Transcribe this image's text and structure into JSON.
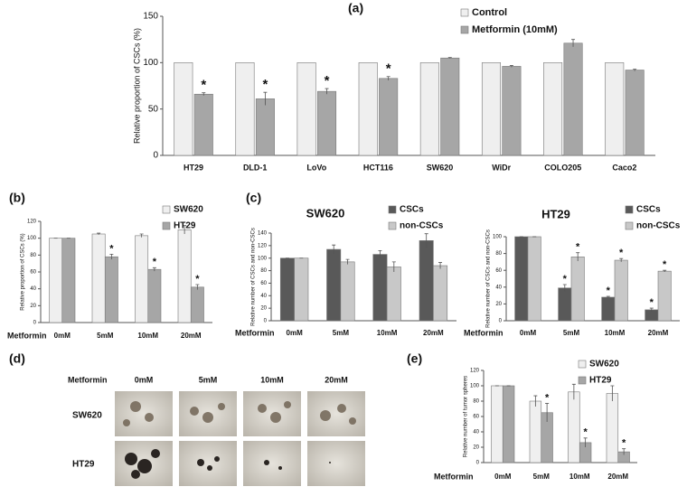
{
  "chart_data": [
    {
      "type": "bar",
      "panel_label": "(a)",
      "ylabel": "Relative proportion of CSCs (%)",
      "categories": [
        "HT29",
        "DLD-1",
        "LoVo",
        "HCT116",
        "SW620",
        "WiDr",
        "COLO205",
        "Caco2"
      ],
      "series": [
        {
          "name": "Control",
          "color": "#efefef",
          "values": [
            100,
            100,
            100,
            100,
            100,
            100,
            100,
            100
          ]
        },
        {
          "name": "Metformin (10mM)",
          "color": "#a6a6a6",
          "values": [
            66,
            61,
            69,
            83,
            105,
            96,
            121,
            92
          ],
          "errors": [
            1.5,
            7,
            3,
            2,
            0.5,
            1,
            4,
            1
          ],
          "significance": [
            "*",
            "*",
            "*",
            "*",
            null,
            null,
            null,
            null
          ]
        }
      ],
      "ylim": [
        0,
        150
      ],
      "yticks": [
        0,
        50,
        100,
        150
      ],
      "legend": "top-right"
    },
    {
      "type": "bar",
      "panel_label": "(b)",
      "ylabel": "Relative proportion of CSCs (%)",
      "xlabel": "Metformin",
      "categories": [
        "0mM",
        "5mM",
        "10mM",
        "20mM"
      ],
      "series": [
        {
          "name": "SW620",
          "color": "#efefef",
          "values": [
            100,
            105,
            103,
            110
          ],
          "errors": [
            0,
            1,
            2,
            5
          ]
        },
        {
          "name": "HT29",
          "color": "#a6a6a6",
          "values": [
            100,
            78,
            63,
            42
          ],
          "errors": [
            0,
            3,
            2,
            3
          ],
          "significance": [
            null,
            "*",
            "*",
            "*"
          ]
        }
      ],
      "ylim": [
        0,
        120
      ],
      "yticks": [
        0,
        20,
        40,
        60,
        80,
        100,
        120
      ],
      "legend": "top-right"
    },
    {
      "type": "bar",
      "panel_label": "(c)",
      "title": "SW620",
      "ylabel": "Relative number of CSCs and non-CSCs",
      "xlabel": "Metformin",
      "categories": [
        "0mM",
        "5mM",
        "10mM",
        "20mM"
      ],
      "series": [
        {
          "name": "CSCs",
          "color": "#595959",
          "values": [
            100,
            114,
            106,
            128
          ],
          "errors": [
            0,
            7,
            6,
            11
          ]
        },
        {
          "name": "non-CSCs",
          "color": "#c8c8c8",
          "values": [
            100,
            94,
            86,
            88
          ],
          "errors": [
            0,
            4,
            8,
            5
          ]
        }
      ],
      "ylim": [
        0,
        140
      ],
      "yticks": [
        0,
        20,
        40,
        60,
        80,
        100,
        120,
        140
      ],
      "legend": "top-right"
    },
    {
      "type": "bar",
      "title": "HT29",
      "ylabel": "Relative number of CSCs and non-CSCs",
      "xlabel": "Metformin",
      "categories": [
        "0mM",
        "5mM",
        "10mM",
        "20mM"
      ],
      "series": [
        {
          "name": "CSCs",
          "color": "#595959",
          "values": [
            100,
            39,
            28,
            13
          ],
          "errors": [
            0,
            4,
            1,
            2
          ],
          "significance": [
            null,
            "*",
            "*",
            "*"
          ]
        },
        {
          "name": "non-CSCs",
          "color": "#c8c8c8",
          "values": [
            100,
            76,
            72,
            59
          ],
          "errors": [
            0,
            5,
            2,
            1
          ],
          "significance": [
            null,
            "*",
            "*",
            "*"
          ]
        }
      ],
      "ylim": [
        0,
        100
      ],
      "yticks": [
        0,
        20,
        40,
        60,
        80,
        100
      ],
      "legend": "top-right"
    },
    {
      "type": "bar",
      "panel_label": "(e)",
      "ylabel": "Relative number of tumor spheres",
      "xlabel": "Metformin",
      "categories": [
        "0mM",
        "5mM",
        "10mM",
        "20mM"
      ],
      "series": [
        {
          "name": "SW620",
          "color": "#efefef",
          "values": [
            100,
            80,
            92,
            90
          ],
          "errors": [
            0,
            7,
            10,
            10
          ]
        },
        {
          "name": "HT29",
          "color": "#a6a6a6",
          "values": [
            100,
            65,
            26,
            14
          ],
          "errors": [
            0,
            12,
            6,
            4
          ],
          "significance": [
            null,
            "*",
            "*",
            "*"
          ]
        }
      ],
      "ylim": [
        0,
        120
      ],
      "yticks": [
        0,
        20,
        40,
        60,
        80,
        100,
        120
      ],
      "legend": "top-right"
    }
  ],
  "micrographs": {
    "panel_label": "(d)",
    "row_title": "Metformin",
    "columns": [
      "0mM",
      "5mM",
      "10mM",
      "20mM"
    ],
    "rows": [
      "SW620",
      "HT29"
    ]
  }
}
